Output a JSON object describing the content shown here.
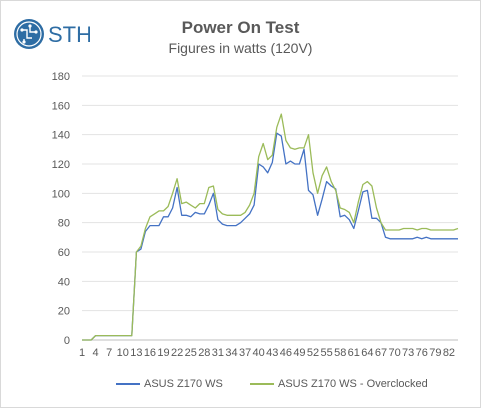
{
  "logo": {
    "text": "STH"
  },
  "chart_data": {
    "type": "line",
    "title": "Power On Test",
    "subtitle": "Figures in watts (120V)",
    "xlabel": "",
    "ylabel": "",
    "ylim": [
      0,
      180
    ],
    "yticks": [
      0,
      20,
      40,
      60,
      80,
      100,
      120,
      140,
      160,
      180
    ],
    "x": [
      1,
      2,
      3,
      4,
      5,
      6,
      7,
      8,
      9,
      10,
      11,
      12,
      13,
      14,
      15,
      16,
      17,
      18,
      19,
      20,
      21,
      22,
      23,
      24,
      25,
      26,
      27,
      28,
      29,
      30,
      31,
      32,
      33,
      34,
      35,
      36,
      37,
      38,
      39,
      40,
      41,
      42,
      43,
      44,
      45,
      46,
      47,
      48,
      49,
      50,
      51,
      52,
      53,
      54,
      55,
      56,
      57,
      58,
      59,
      60,
      61,
      62,
      63,
      64,
      65,
      66,
      67,
      68,
      69,
      70,
      71,
      72,
      73,
      74,
      75,
      76,
      77,
      78,
      79,
      80,
      81,
      82,
      83,
      84
    ],
    "xtick_labels": [
      "1",
      "4",
      "7",
      "10",
      "13",
      "16",
      "19",
      "22",
      "25",
      "28",
      "31",
      "34",
      "37",
      "40",
      "43",
      "46",
      "49",
      "52",
      "55",
      "58",
      "61",
      "64",
      "67",
      "70",
      "73",
      "76",
      "79",
      "82"
    ],
    "grid": true,
    "legend_position": "bottom",
    "series": [
      {
        "name": "ASUS Z170 WS",
        "color": "#4472c4",
        "values": [
          0,
          0,
          0,
          3,
          3,
          3,
          3,
          3,
          3,
          3,
          3,
          3,
          60,
          62,
          74,
          78,
          78,
          78,
          84,
          84,
          90,
          104,
          85,
          85,
          84,
          87,
          86,
          86,
          92,
          100,
          82,
          79,
          78,
          78,
          78,
          80,
          83,
          86,
          92,
          120,
          118,
          114,
          121,
          141,
          139,
          120,
          122,
          120,
          120,
          130,
          102,
          99,
          85,
          96,
          108,
          105,
          103,
          84,
          85,
          82,
          76,
          88,
          101,
          102,
          83,
          83,
          80,
          70,
          69,
          69,
          69,
          69,
          69,
          69,
          70,
          69,
          70,
          69,
          69,
          69,
          69,
          69,
          69,
          69
        ]
      },
      {
        "name": "ASUS Z170 WS - Overclocked",
        "color": "#9bbb59",
        "values": [
          0,
          0,
          0,
          3,
          3,
          3,
          3,
          3,
          3,
          3,
          3,
          3,
          60,
          64,
          76,
          84,
          86,
          88,
          88,
          91,
          100,
          110,
          93,
          94,
          92,
          90,
          93,
          93,
          104,
          105,
          89,
          86,
          85,
          85,
          85,
          85,
          87,
          92,
          100,
          125,
          134,
          123,
          126,
          145,
          154,
          136,
          131,
          130,
          131,
          131,
          140,
          114,
          100,
          112,
          118,
          108,
          102,
          90,
          89,
          87,
          80,
          94,
          106,
          108,
          105,
          90,
          80,
          75,
          75,
          75,
          75,
          76,
          76,
          76,
          75,
          76,
          76,
          75,
          75,
          75,
          75,
          75,
          75,
          76
        ]
      }
    ]
  }
}
